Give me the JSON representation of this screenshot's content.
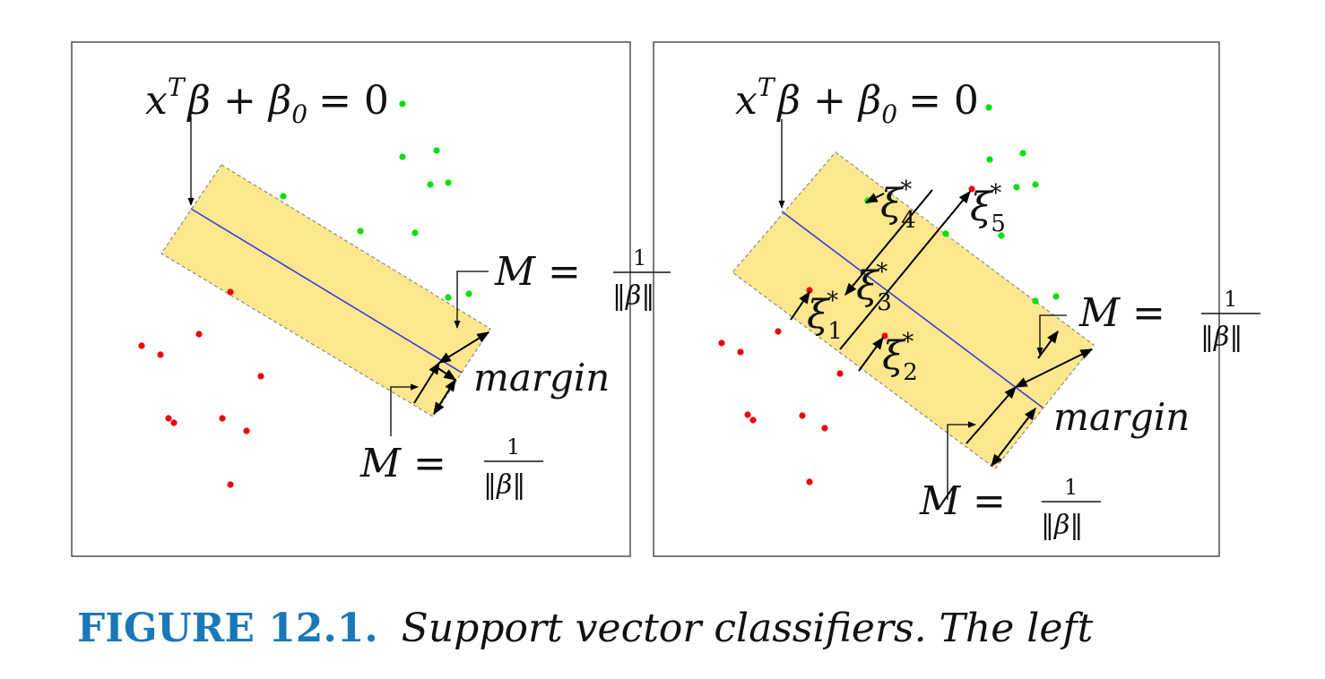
{
  "panels": [
    {
      "equation": {
        "lhs_base": "x",
        "sup": "T",
        "rest": "β + β",
        "sub": "0",
        "rhs": "= 0"
      },
      "margin_label": "margin",
      "m_eq": {
        "lhs": "M =",
        "num": "1",
        "den": "‖β‖"
      },
      "slacks": []
    },
    {
      "equation": {
        "lhs_base": "x",
        "sup": "T",
        "rest": "β + β",
        "sub": "0",
        "rhs": "= 0"
      },
      "margin_label": "margin",
      "m_eq": {
        "lhs": "M =",
        "num": "1",
        "den": "‖β‖"
      },
      "slacks": [
        {
          "sym": "ξ",
          "sub": "1",
          "sup": "*"
        },
        {
          "sym": "ξ",
          "sub": "2",
          "sup": "*"
        },
        {
          "sym": "ξ",
          "sub": "3",
          "sup": "*"
        },
        {
          "sym": "ξ",
          "sub": "4",
          "sup": "*"
        },
        {
          "sym": "ξ",
          "sub": "5",
          "sup": "*"
        }
      ]
    }
  ],
  "colors": {
    "band": "#fce78f",
    "hyperplane": "#3b3bd9",
    "class_green": "#00e000",
    "class_red": "#ee0000",
    "caption_label": "#1a78b8"
  },
  "caption": {
    "label": "FIGURE 12.1.",
    "text": "Support vector classifiers.  The left"
  }
}
